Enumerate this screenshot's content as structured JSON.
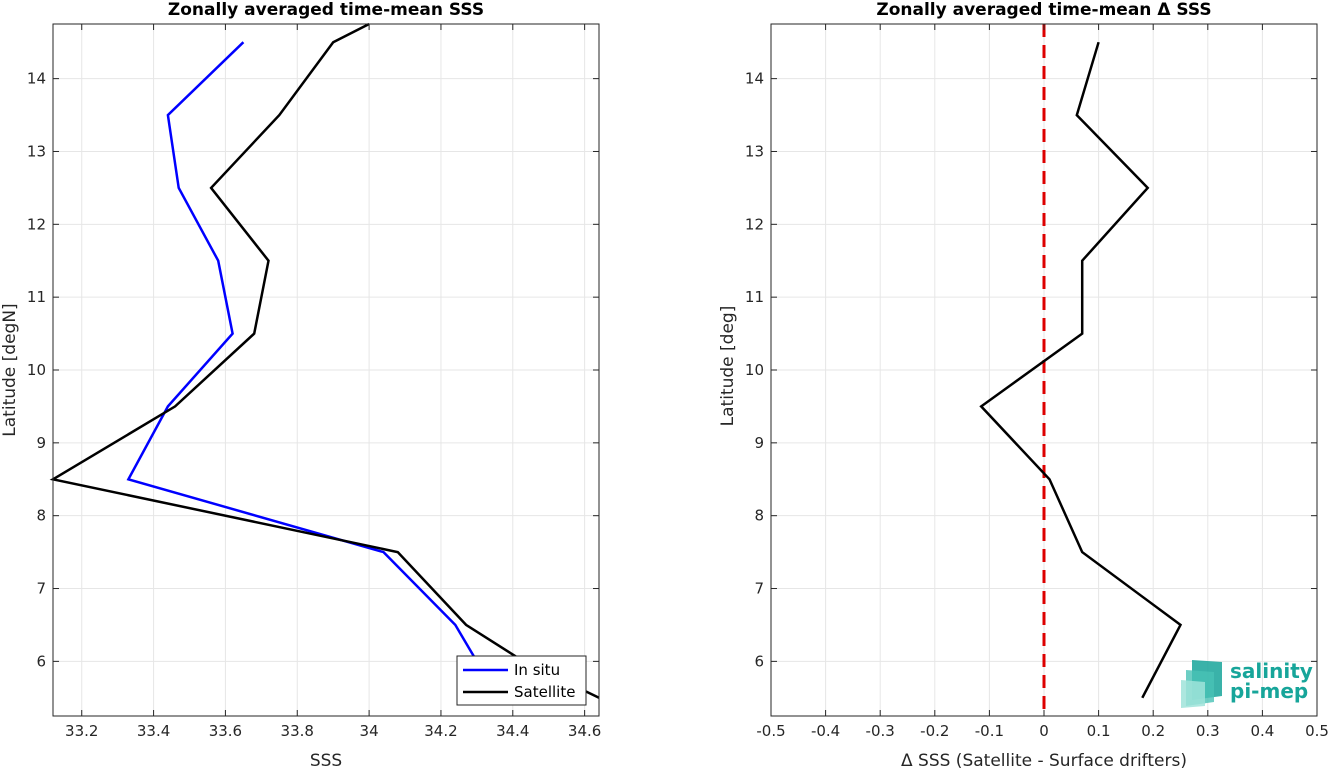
{
  "chart_data": [
    {
      "type": "line",
      "title": "Zonally averaged time-mean SSS",
      "xlabel": "SSS",
      "ylabel": "Latitude [degN]",
      "xlim": [
        33.12,
        34.64
      ],
      "ylim": [
        5.25,
        14.75
      ],
      "xticks": [
        33.2,
        33.4,
        33.6,
        33.8,
        34,
        34.2,
        34.4,
        34.6
      ],
      "xtick_labels": [
        "33.2",
        "33.4",
        "33.6",
        "33.8",
        "34",
        "34.2",
        "34.4",
        "34.6"
      ],
      "yticks": [
        6,
        7,
        8,
        9,
        10,
        11,
        12,
        13,
        14
      ],
      "ytick_labels": [
        "6",
        "7",
        "8",
        "9",
        "10",
        "11",
        "12",
        "13",
        "14"
      ],
      "grid": true,
      "legend_position": "bottom-right",
      "series": [
        {
          "name": "In situ",
          "color": "#0000ff",
          "x": [
            34.33,
            34.24,
            34.04,
            33.33,
            33.44,
            33.62,
            33.58,
            33.47,
            33.44,
            33.65
          ],
          "y": [
            5.75,
            6.5,
            7.5,
            8.5,
            9.5,
            10.5,
            11.5,
            12.5,
            13.5,
            14.5
          ]
        },
        {
          "name": "Satellite",
          "color": "#000000",
          "x": [
            34.64,
            34.43,
            34.27,
            34.08,
            33.12,
            33.46,
            33.68,
            33.72,
            33.56,
            33.75,
            33.9,
            34.0
          ],
          "y": [
            5.5,
            6.0,
            6.5,
            7.5,
            8.5,
            9.5,
            10.5,
            11.5,
            12.5,
            13.5,
            14.5,
            14.75
          ]
        }
      ]
    },
    {
      "type": "line",
      "title": "Zonally averaged time-mean Δ SSS",
      "xlabel": "Δ SSS (Satellite - Surface drifters)",
      "ylabel": "Latitude [deg]",
      "xlim": [
        -0.5,
        0.5
      ],
      "ylim": [
        5.25,
        14.75
      ],
      "xticks": [
        -0.5,
        -0.4,
        -0.3,
        -0.2,
        -0.1,
        0,
        0.1,
        0.2,
        0.3,
        0.4,
        0.5
      ],
      "xtick_labels": [
        "-0.5",
        "-0.4",
        "-0.3",
        "-0.2",
        "-0.1",
        "0",
        "0.1",
        "0.2",
        "0.3",
        "0.4",
        "0.5"
      ],
      "yticks": [
        6,
        7,
        8,
        9,
        10,
        11,
        12,
        13,
        14
      ],
      "ytick_labels": [
        "6",
        "7",
        "8",
        "9",
        "10",
        "11",
        "12",
        "13",
        "14"
      ],
      "grid": true,
      "reference_line": {
        "x": 0,
        "color": "#dd0000",
        "style": "dashed"
      },
      "series": [
        {
          "color": "#000000",
          "x": [
            0.18,
            0.25,
            0.07,
            0.01,
            -0.115,
            0.07,
            0.07,
            0.19,
            0.06,
            0.1
          ],
          "y": [
            5.5,
            6.5,
            7.5,
            8.5,
            9.5,
            10.5,
            11.5,
            12.5,
            13.5,
            14.5
          ]
        }
      ]
    }
  ],
  "logo": {
    "line1": "salinity",
    "line2": "pi-mep",
    "color": "#17a59a"
  }
}
